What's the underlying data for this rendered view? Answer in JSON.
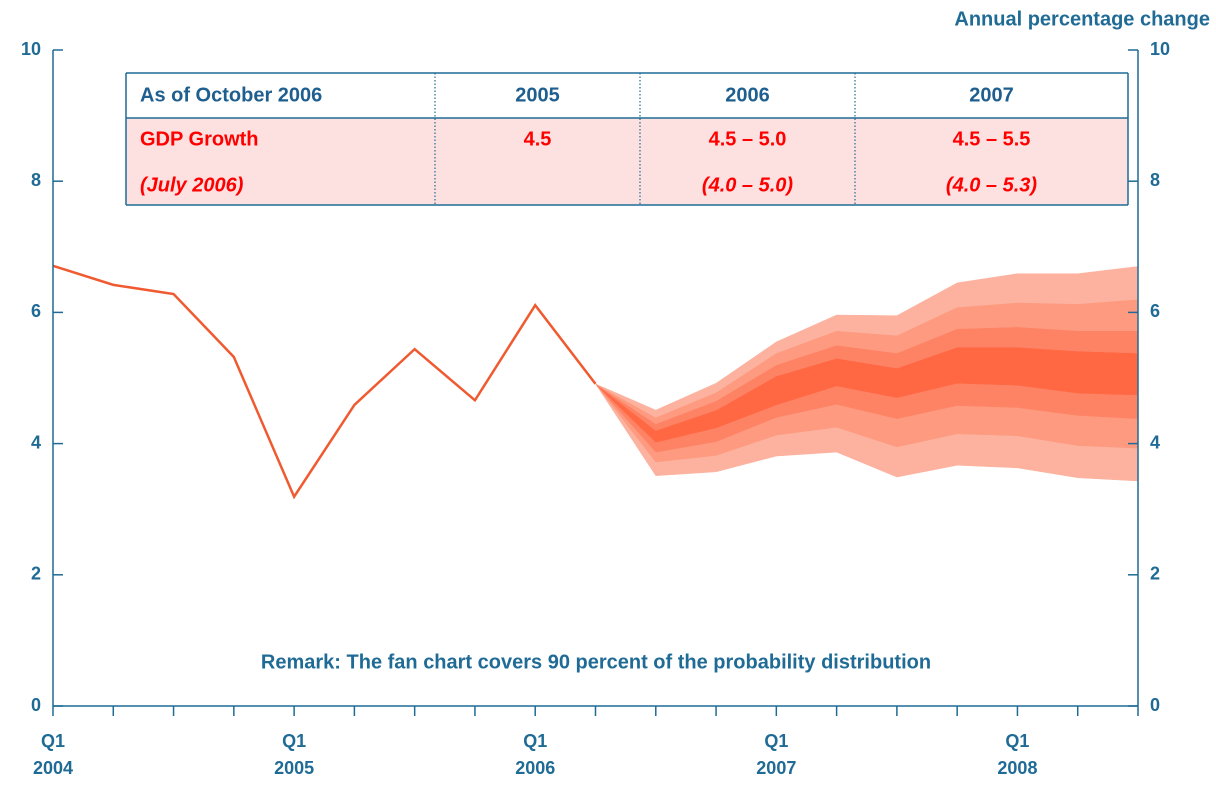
{
  "chart_data": {
    "type": "fan",
    "y_axis_label": "Annual percentage change",
    "annotation": "Remark: The fan chart covers 90 percent of the probability distribution",
    "categories": [
      [
        "Q1",
        "2004"
      ],
      null,
      null,
      null,
      [
        "Q1",
        "2005"
      ],
      null,
      null,
      null,
      [
        "Q1",
        "2006"
      ],
      null,
      null,
      null,
      [
        "Q1",
        "2007"
      ],
      null,
      null,
      null,
      [
        "Q1",
        "2008"
      ],
      null,
      null
    ],
    "ylim": [
      0,
      10
    ],
    "yticks": [
      0,
      2,
      4,
      6,
      8,
      10
    ],
    "y2lim": [
      0,
      10
    ],
    "y2ticks": [
      0,
      2,
      4,
      6,
      8,
      10
    ],
    "axis_color": "#1f6b95",
    "series": [
      {
        "color": "#f05a30",
        "values": [
          6.71,
          6.42,
          6.28,
          5.32,
          3.19,
          4.59,
          5.44,
          4.66,
          6.11,
          4.91,
          null,
          null,
          null,
          null,
          null,
          null,
          null,
          null,
          null
        ]
      }
    ],
    "fan_colors": [
      "#fcb29e",
      "#fd9a80",
      "#fe8365",
      "#ff6843",
      "#fe8365",
      "#fd9a80",
      "#fcb29e"
    ],
    "fan_bounds": [
      [
        null,
        null,
        null,
        null,
        null,
        null,
        null,
        null,
        null,
        4.91,
        3.51,
        3.57,
        3.81,
        3.87,
        3.49,
        3.67,
        3.63,
        3.48,
        3.43
      ],
      [
        null,
        null,
        null,
        null,
        null,
        null,
        null,
        null,
        null,
        4.91,
        3.72,
        3.82,
        4.13,
        4.25,
        3.95,
        4.15,
        4.12,
        3.97,
        3.93
      ],
      [
        null,
        null,
        null,
        null,
        null,
        null,
        null,
        null,
        null,
        4.91,
        3.87,
        4.03,
        4.4,
        4.6,
        4.38,
        4.58,
        4.55,
        4.43,
        4.38
      ],
      [
        null,
        null,
        null,
        null,
        null,
        null,
        null,
        null,
        null,
        4.91,
        4.02,
        4.24,
        4.59,
        4.88,
        4.7,
        4.92,
        4.89,
        4.77,
        4.74
      ],
      [
        null,
        null,
        null,
        null,
        null,
        null,
        null,
        null,
        null,
        4.91,
        4.2,
        4.51,
        5.03,
        5.3,
        5.15,
        5.47,
        5.47,
        5.41,
        5.38
      ],
      [
        null,
        null,
        null,
        null,
        null,
        null,
        null,
        null,
        null,
        4.91,
        4.3,
        4.65,
        5.2,
        5.5,
        5.38,
        5.75,
        5.78,
        5.72,
        5.72
      ],
      [
        null,
        null,
        null,
        null,
        null,
        null,
        null,
        null,
        null,
        4.91,
        4.4,
        4.78,
        5.38,
        5.72,
        5.65,
        6.08,
        6.15,
        6.13,
        6.2
      ],
      [
        null,
        null,
        null,
        null,
        null,
        null,
        null,
        null,
        null,
        4.91,
        4.51,
        4.92,
        5.55,
        5.96,
        5.95,
        6.45,
        6.59,
        6.59,
        6.7
      ]
    ]
  },
  "table": {
    "header": [
      "As of October 2006",
      "2005",
      "2006",
      "2007"
    ],
    "rows": [
      [
        "GDP Growth",
        "4.5",
        "4.5 – 5.0",
        "4.5 – 5.5"
      ],
      [
        "(July 2006)",
        null,
        "(4.0 – 5.0)",
        "(4.0 – 5.3)"
      ]
    ]
  }
}
